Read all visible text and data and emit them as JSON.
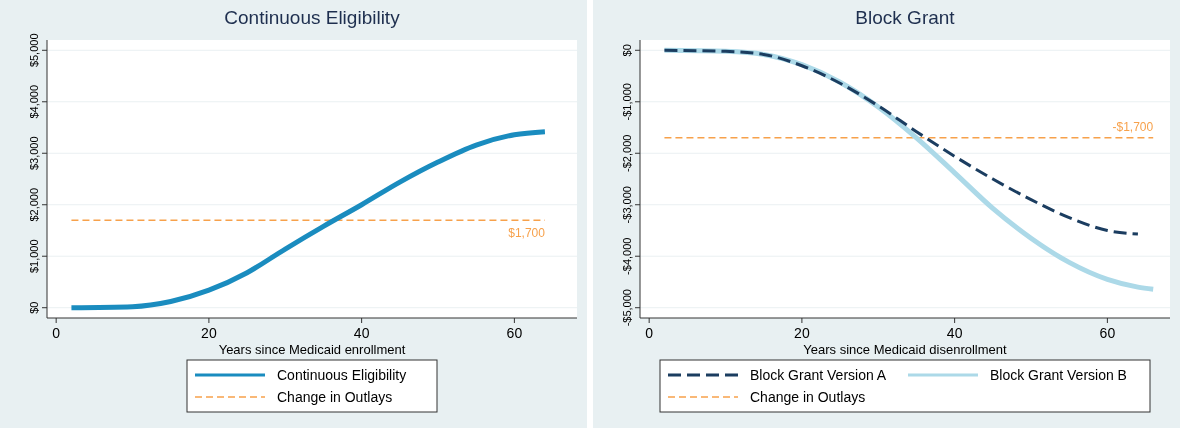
{
  "chart_data": [
    {
      "type": "line",
      "title": "Continuous Eligibility",
      "xlabel": "Years since Medicaid enrollment",
      "xlim": [
        -1.2,
        68.2
      ],
      "xticks": [
        0,
        20,
        40,
        60
      ],
      "ylim": [
        -200,
        5200
      ],
      "yticks": [
        {
          "value": 0,
          "label": "$0"
        },
        {
          "value": 1000,
          "label": "$1,000"
        },
        {
          "value": 2000,
          "label": "$2,000"
        },
        {
          "value": 3000,
          "label": "$3,000"
        },
        {
          "value": 4000,
          "label": "$4,000"
        },
        {
          "value": 5000,
          "label": "$5,000"
        }
      ],
      "grid": "y",
      "legend": "bottom",
      "series": [
        {
          "name": "Continuous Eligibility",
          "color": "#1a8cbf",
          "line_style": "solid",
          "x": [
            2,
            10,
            15,
            20,
            25,
            30,
            35,
            40,
            45,
            50,
            55,
            60,
            64
          ],
          "values": [
            0,
            20,
            120,
            340,
            680,
            1140,
            1580,
            2000,
            2440,
            2830,
            3160,
            3360,
            3420
          ]
        },
        {
          "name": "Change in Outlays",
          "color": "#f7a14b",
          "line_style": "dashed",
          "x": [
            2,
            64
          ],
          "values": [
            1700,
            1700
          ]
        }
      ],
      "annotations": [
        {
          "text": "$1,700",
          "x": 64,
          "y": 1700
        }
      ]
    },
    {
      "type": "line",
      "title": "Block Grant",
      "xlabel": "Years since Medicaid disenrollment",
      "xlim": [
        -1.2,
        68.2
      ],
      "xticks": [
        0,
        20,
        40,
        60
      ],
      "ylim": [
        -5200,
        200
      ],
      "yticks": [
        {
          "value": -5000,
          "label": "-$5,000"
        },
        {
          "value": -4000,
          "label": "-$4,000"
        },
        {
          "value": -3000,
          "label": "-$3,000"
        },
        {
          "value": -2000,
          "label": "-$2,000"
        },
        {
          "value": -1000,
          "label": "-$1,000"
        },
        {
          "value": 0,
          "label": "$0"
        }
      ],
      "grid": "y",
      "legend": "bottom",
      "series": [
        {
          "name": "Block Grant Version A",
          "color": "#1b3d60",
          "line_style": "dashed",
          "x": [
            2,
            10,
            15,
            20,
            25,
            30,
            35,
            40,
            45,
            50,
            55,
            60,
            64
          ],
          "values": [
            0,
            -20,
            -80,
            -300,
            -640,
            -1080,
            -1580,
            -2060,
            -2500,
            -2900,
            -3250,
            -3500,
            -3570
          ]
        },
        {
          "name": "Block Grant Version B",
          "color": "#acd9e8",
          "line_style": "solid",
          "x": [
            2,
            10,
            15,
            20,
            25,
            30,
            35,
            40,
            45,
            50,
            55,
            60,
            64,
            66
          ],
          "values": [
            0,
            -20,
            -80,
            -280,
            -620,
            -1100,
            -1700,
            -2380,
            -3070,
            -3650,
            -4120,
            -4450,
            -4600,
            -4640
          ]
        },
        {
          "name": "Change in Outlays",
          "color": "#f7a14b",
          "line_style": "dashed",
          "x": [
            2,
            66
          ],
          "values": [
            -1700,
            -1700
          ]
        }
      ],
      "annotations": [
        {
          "text": "-$1,700",
          "x": 66,
          "y": -1700
        }
      ]
    }
  ]
}
